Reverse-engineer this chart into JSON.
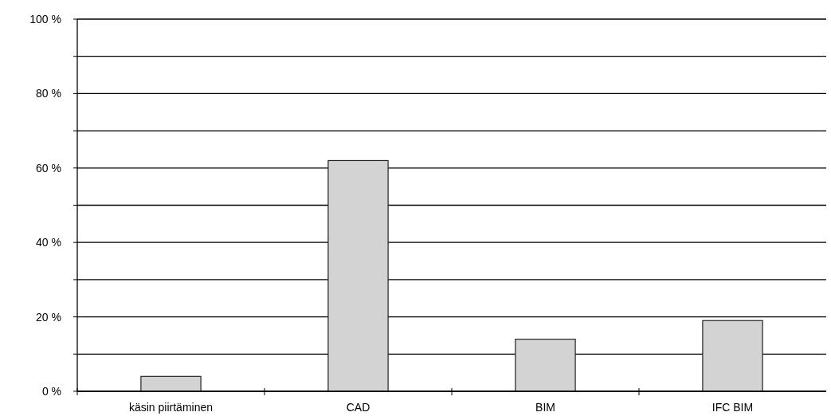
{
  "chart_data": {
    "type": "bar",
    "categories": [
      "käsin piirtäminen",
      "CAD",
      "BIM",
      "IFC BIM"
    ],
    "values": [
      4,
      62,
      14,
      19
    ],
    "color": "#d3d3d3",
    "ylim": [
      0,
      100
    ],
    "yticks": [
      {
        "value": 0,
        "label": "0 %"
      },
      {
        "value": 10,
        "label": null
      },
      {
        "value": 20,
        "label": "20 %"
      },
      {
        "value": 30,
        "label": null
      },
      {
        "value": 40,
        "label": "40 %"
      },
      {
        "value": 50,
        "label": null
      },
      {
        "value": 60,
        "label": "60 %"
      },
      {
        "value": 70,
        "label": null
      },
      {
        "value": 80,
        "label": "80 %"
      },
      {
        "value": 90,
        "label": null
      },
      {
        "value": 100,
        "label": "100 %"
      }
    ],
    "grid": "y"
  }
}
